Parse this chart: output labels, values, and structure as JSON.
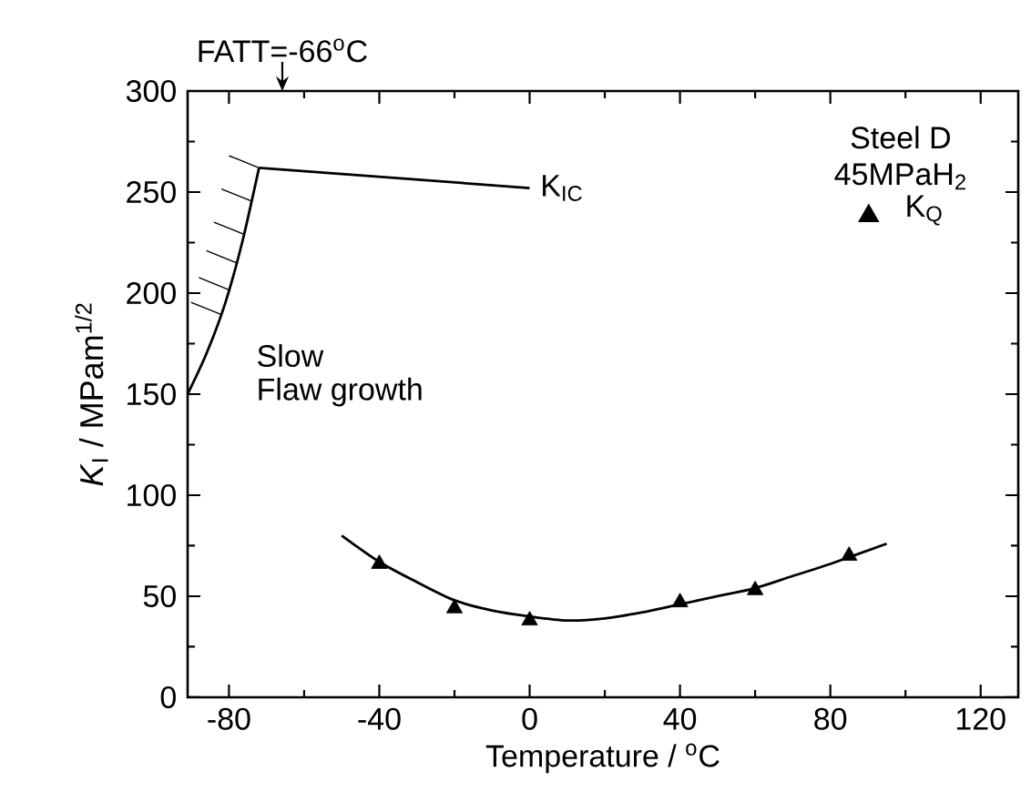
{
  "chart_data": {
    "type": "scatter",
    "xlabel": "Temperature / $^{o}$C",
    "ylabel": "*K*$_{I}$ / MPam$^{1/2}$",
    "legend_title": "Steel D 45MPaH$_{2}$",
    "xlim": [
      -91,
      130
    ],
    "ylim": [
      0,
      300
    ],
    "xticks": [
      -80,
      -40,
      0,
      40,
      80,
      120
    ],
    "yticks": [
      0,
      50,
      100,
      150,
      200,
      250,
      300
    ],
    "legend": "top right",
    "grid": false,
    "series": [
      {
        "name": "K$_{Q}$",
        "marker": "triangle",
        "color": "#000000",
        "x": [
          -40,
          -20,
          0,
          40,
          60,
          85
        ],
        "values": [
          66,
          44,
          38,
          47,
          53,
          70
        ]
      },
      {
        "type": "line",
        "marker": "none",
        "color": "#000000",
        "x": [
          -50,
          -40,
          -30,
          -20,
          -10,
          0,
          10,
          20,
          30,
          40,
          50,
          60,
          70,
          80,
          95
        ],
        "values": [
          80,
          67,
          57,
          48,
          43,
          40,
          38,
          39,
          42,
          46,
          50,
          54,
          60,
          66,
          76
        ]
      },
      {
        "name": "K$_{IC}$",
        "type": "line",
        "marker": "none",
        "color": "#000000",
        "x": [
          -72,
          0
        ],
        "values": [
          262,
          252
        ]
      },
      {
        "type": "line",
        "marker": "none",
        "color": "#000000",
        "x": [
          -91,
          -86,
          -81,
          -76.5,
          -72
        ],
        "values": [
          150,
          170,
          195,
          225,
          262
        ]
      }
    ],
    "annotations": [
      "FATT=-66$^{o}$C",
      "Slow",
      "Flaw growth"
    ]
  }
}
